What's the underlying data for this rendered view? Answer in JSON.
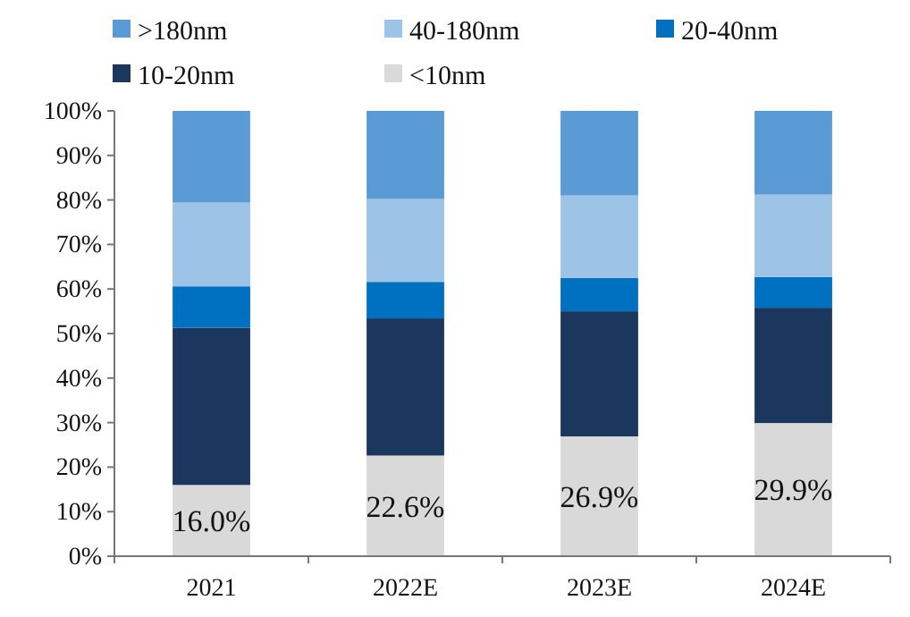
{
  "chart_data": {
    "type": "bar",
    "stacked": true,
    "categories": [
      "2021",
      "2022E",
      "2023E",
      "2024E"
    ],
    "series": [
      {
        "name": "<10nm",
        "color": "#d9d9d9",
        "values": [
          16.0,
          22.6,
          26.9,
          29.9
        ],
        "value_labels": [
          "16.0%",
          "22.6%",
          "26.9%",
          "29.9%"
        ]
      },
      {
        "name": "10-20nm",
        "color": "#1c375e",
        "values": [
          35.3,
          30.8,
          28.1,
          25.9
        ]
      },
      {
        "name": "20-40nm",
        "color": "#0070c0",
        "values": [
          9.3,
          8.2,
          7.5,
          6.9
        ]
      },
      {
        "name": "40-180nm",
        "color": "#9dc3e6",
        "values": [
          18.8,
          18.6,
          18.5,
          18.5
        ]
      },
      {
        "name": ">180nm",
        "color": "#5b9bd5",
        "values": [
          20.6,
          19.8,
          19.0,
          18.8
        ]
      }
    ],
    "ylim": [
      0,
      100
    ],
    "yticks": [
      {
        "value": 0,
        "label": "0%"
      },
      {
        "value": 10,
        "label": "10%"
      },
      {
        "value": 20,
        "label": "20%"
      },
      {
        "value": 30,
        "label": "30%"
      },
      {
        "value": 40,
        "label": "40%"
      },
      {
        "value": 50,
        "label": "50%"
      },
      {
        "value": 60,
        "label": "60%"
      },
      {
        "value": 70,
        "label": "70%"
      },
      {
        "value": 80,
        "label": "80%"
      },
      {
        "value": 90,
        "label": "90%"
      },
      {
        "value": 100,
        "label": "100%"
      }
    ],
    "grid": false,
    "legend": "top"
  }
}
